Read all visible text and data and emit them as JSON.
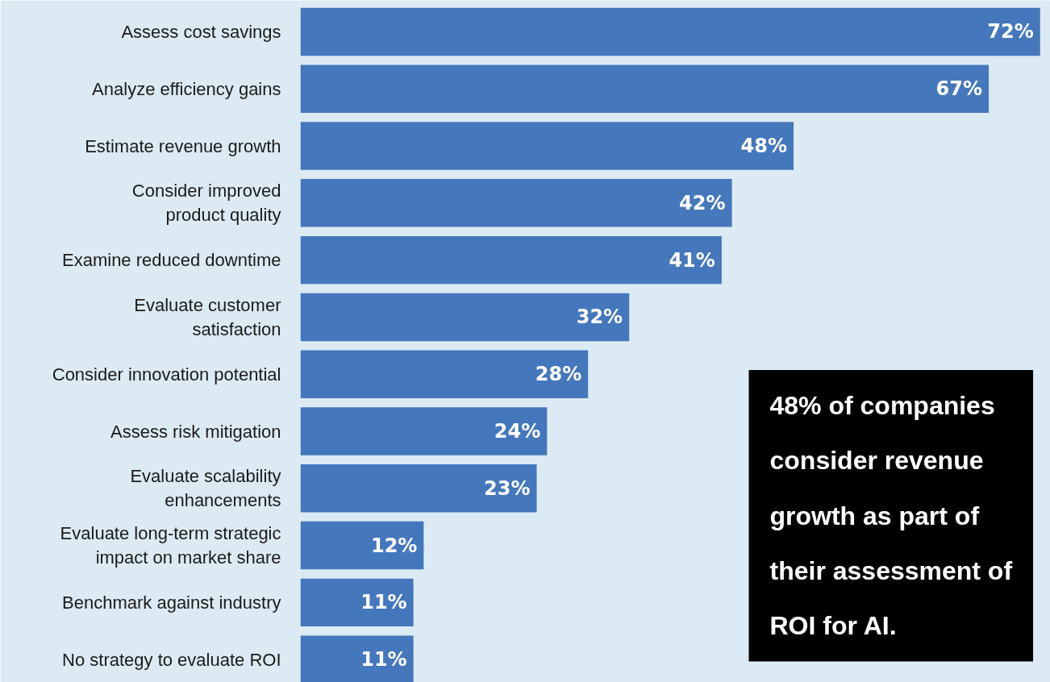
{
  "chart_data": {
    "type": "bar",
    "orientation": "horizontal",
    "categories": [
      "Assess cost savings",
      "Analyze efficiency gains",
      "Estimate revenue growth",
      "Consider improved\nproduct quality",
      "Examine reduced downtime",
      "Evaluate customer\nsatisfaction",
      "Consider innovation potential",
      "Assess risk mitigation",
      "Evaluate scalability\nenhancements",
      "Evaluate long-term strategic\nimpact on market share",
      "Benchmark against industry",
      "No strategy to evaluate ROI"
    ],
    "values": [
      72,
      67,
      48,
      42,
      41,
      32,
      28,
      24,
      23,
      12,
      11,
      11
    ],
    "value_labels": [
      "72%",
      "67%",
      "48%",
      "42%",
      "41%",
      "32%",
      "28%",
      "24%",
      "23%",
      "12%",
      "11%",
      "11%"
    ],
    "color": "#4577bc",
    "xlim": [
      0,
      73
    ],
    "tick_labels": "y",
    "grid": false,
    "annotations": [
      "48% of companies consider revenue growth as part of their assessment of ROI for AI."
    ]
  }
}
